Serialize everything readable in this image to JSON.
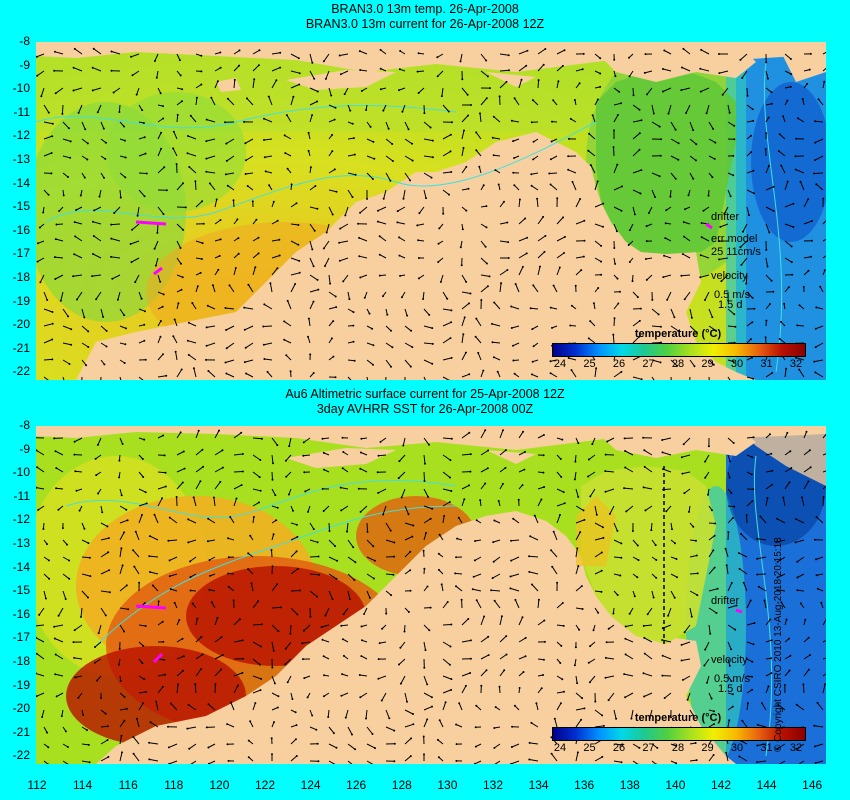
{
  "top_panel": {
    "title_line1": "BRAN3.0 13m temp. 26-Apr-2008",
    "title_line2": "BRAN3.0 13m current for 26-Apr-2008 12Z",
    "legend_title": "temperature (°C)",
    "drifter_label": "drifter",
    "err_model_label": "err model",
    "err_model_value": "25 11cm/s",
    "velocity_label": "velocity",
    "velocity_scale": "0.5 m/s",
    "velocity_days": "1.5 d"
  },
  "bottom_panel": {
    "title_line1": "Au6 Altimetric surface current for 25-Apr-2008 12Z",
    "title_line2": "3day AVHRR SST for 26-Apr-2008 00Z",
    "legend_title": "temperature (°C)",
    "drifter_label": "drifter",
    "velocity_label": "velocity",
    "velocity_scale": "0.5 m/s",
    "velocity_days": "1.5 d"
  },
  "legend_ticks": [
    "24",
    "25",
    "26",
    "27",
    "28",
    "29",
    "30",
    "31",
    "32"
  ],
  "y_axis_labels": [
    "-8",
    "-9",
    "-10",
    "-11",
    "-12",
    "-13",
    "-14",
    "-15",
    "-16",
    "-17",
    "-18",
    "-19",
    "-20",
    "-21",
    "-22"
  ],
  "x_axis_labels": [
    "112",
    "114",
    "116",
    "118",
    "120",
    "122",
    "124",
    "126",
    "128",
    "130",
    "132",
    "134",
    "136",
    "138",
    "140",
    "142",
    "144",
    "146"
  ],
  "copyright": "© Copyright CSIRO 2010    13-Aug-2018 20:15:18",
  "colors": {
    "background": "#00ffff",
    "land": "#f8d0a0",
    "drifter": "#ff00ff"
  }
}
